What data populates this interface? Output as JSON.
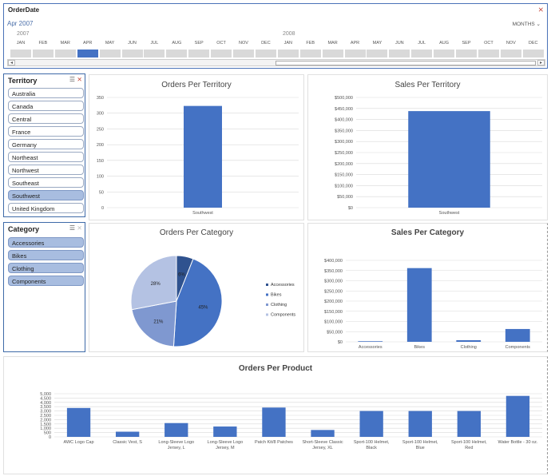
{
  "timeline": {
    "title": "OrderDate",
    "period_label": "Apr 2007",
    "level_label": "MONTHS ⌄",
    "years": [
      "2007",
      "2008"
    ],
    "months": [
      "JAN",
      "FEB",
      "MAR",
      "APR",
      "MAY",
      "JUN",
      "JUL",
      "AUG",
      "SEP",
      "OCT",
      "NOV",
      "DEC",
      "JAN",
      "FEB",
      "MAR",
      "APR",
      "MAY",
      "JUN",
      "JUL",
      "AUG",
      "SEP",
      "OCT",
      "NOV",
      "DEC"
    ],
    "selected_month_index": 3
  },
  "territory_slicer": {
    "title": "Territory",
    "items": [
      "Australia",
      "Canada",
      "Central",
      "France",
      "Germany",
      "Northeast",
      "Northwest",
      "Southeast",
      "Southwest",
      "United Kingdom"
    ],
    "selected": [
      "Southwest"
    ]
  },
  "category_slicer": {
    "title": "Category",
    "items": [
      "Accessories",
      "Bikes",
      "Clothing",
      "Components"
    ],
    "selected": [
      "Accessories",
      "Bikes",
      "Clothing",
      "Components"
    ]
  },
  "colors": {
    "bar": "#4472c4",
    "pie": [
      "#2f528f",
      "#4472c4",
      "#7f98d0",
      "#b4c2e3"
    ],
    "grid": "#d9d9d9",
    "slicer_border": "#3e6aa8"
  },
  "chart_data": [
    {
      "id": "orders_territory",
      "type": "bar",
      "title": "Orders Per Territory",
      "categories": [
        "Southwest"
      ],
      "values": [
        323
      ],
      "ylim": [
        0,
        350
      ],
      "yticks": [
        0,
        50,
        100,
        150,
        200,
        250,
        300,
        350
      ],
      "ytick_labels": [
        "0",
        "50",
        "100",
        "150",
        "200",
        "250",
        "300",
        "350"
      ],
      "grid": true
    },
    {
      "id": "sales_territory",
      "type": "bar",
      "title": "Sales Per Territory",
      "categories": [
        "Southwest"
      ],
      "values": [
        438000
      ],
      "ylim": [
        0,
        500000
      ],
      "yticks": [
        0,
        50000,
        100000,
        150000,
        200000,
        250000,
        300000,
        350000,
        400000,
        450000,
        500000
      ],
      "ytick_labels": [
        "$0",
        "$50,000",
        "$100,000",
        "$150,000",
        "$200,000",
        "$250,000",
        "$300,000",
        "$350,000",
        "$400,000",
        "$450,000",
        "$500,000"
      ],
      "grid": true
    },
    {
      "id": "orders_category",
      "type": "pie",
      "title": "Orders Per Category",
      "categories": [
        "Accessories",
        "Bikes",
        "Clothing",
        "Components"
      ],
      "values": [
        6,
        45,
        21,
        28
      ],
      "labels": [
        "6%",
        "45%",
        "21%",
        "28%"
      ],
      "legend": "right"
    },
    {
      "id": "sales_category",
      "type": "bar",
      "title": "Sales Per Category",
      "categories": [
        "Accessories",
        "Bikes",
        "Clothing",
        "Components"
      ],
      "values": [
        3000,
        362000,
        8000,
        63000
      ],
      "ylim": [
        0,
        400000
      ],
      "yticks": [
        0,
        50000,
        100000,
        150000,
        200000,
        250000,
        300000,
        350000,
        400000
      ],
      "ytick_labels": [
        "$0",
        "$50,000",
        "$100,000",
        "$150,000",
        "$200,000",
        "$250,000",
        "$300,000",
        "$350,000",
        "$400,000"
      ],
      "grid": true
    },
    {
      "id": "orders_product",
      "type": "bar",
      "title": "Orders Per Product",
      "categories": [
        "AWC Logo Cap",
        "Classic Vest, S",
        "Long-Sleeve Logo Jersey, L",
        "Long-Sleeve Logo Jersey, M",
        "Patch Kit/8 Patches",
        "Short-Sleeve Classic Jersey, XL",
        "Sport-100 Helmet, Black",
        "Sport-100 Helmet, Blue",
        "Sport-100 Helmet, Red",
        "Water Bottle - 30 oz."
      ],
      "category_lines": [
        [
          "AWC Logo Cap"
        ],
        [
          "Classic Vest, S"
        ],
        [
          "Long-Sleeve Logo",
          "Jersey, L"
        ],
        [
          "Long-Sleeve Logo",
          "Jersey, M"
        ],
        [
          "Patch Kit/8 Patches"
        ],
        [
          "Short-Sleeve Classic",
          "Jersey, XL"
        ],
        [
          "Sport-100 Helmet,",
          "Black"
        ],
        [
          "Sport-100 Helmet,",
          "Blue"
        ],
        [
          "Sport-100 Helmet,",
          "Red"
        ],
        [
          "Water Bottle - 30 oz."
        ]
      ],
      "values": [
        3350,
        600,
        1600,
        1200,
        3400,
        800,
        3000,
        3000,
        3000,
        4750
      ],
      "ylim": [
        0,
        5000
      ],
      "yticks": [
        0,
        500,
        1000,
        1500,
        2000,
        2500,
        3000,
        3500,
        4000,
        4500,
        5000
      ],
      "ytick_labels": [
        "0",
        "500",
        "1,000",
        "1,500",
        "2,000",
        "2,500",
        "3,000",
        "3,500",
        "4,000",
        "4,500",
        "5,000"
      ],
      "grid": true
    }
  ]
}
